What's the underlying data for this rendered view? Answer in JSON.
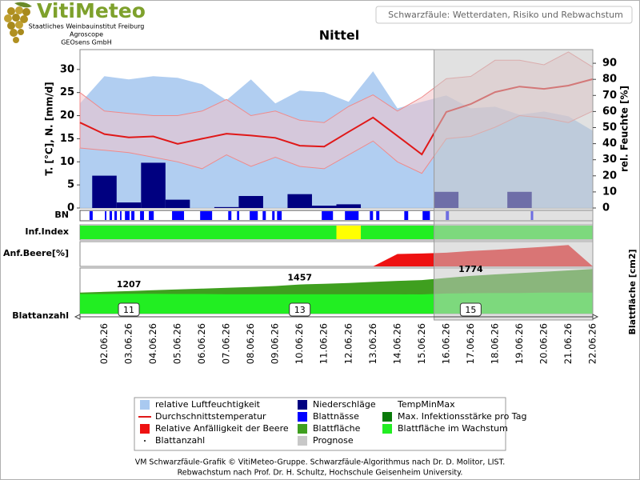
{
  "header": {
    "logo": "VitiMeteo",
    "org_lines": [
      "Staatliches Weinbauinstitut Freiburg",
      "Agroscope",
      "GEOsens GmbH"
    ],
    "banner": "Schwarzfäule: Wetterdaten, Risiko und Rebwachstum"
  },
  "chart_data": {
    "type": "combo",
    "title": "Nittel",
    "categories": [
      null,
      "02.06.26",
      "03.06.26",
      "04.06.26",
      "05.06.26",
      "06.06.26",
      "07.06.26",
      "08.06.26",
      "09.06.26",
      "10.06.26",
      "11.06.26",
      "12.06.26",
      "13.06.26",
      "14.06.26",
      "15.06.26",
      "16.06.26",
      "17.06.26",
      "18.06.26",
      "19.06.26",
      "20.06.26",
      "21.06.26",
      "22.06.26"
    ],
    "y_label": "T. [°C], N. [mm/d]",
    "ylim": [
      0,
      34.3
    ],
    "yticks": [
      0,
      5,
      10,
      15,
      20,
      25,
      30
    ],
    "y2_label": "rel. Feuchte [%]",
    "y2lim": [
      0,
      98.5
    ],
    "y2ticks": [
      0,
      10,
      20,
      30,
      40,
      50,
      60,
      70,
      80,
      90
    ],
    "y3_label": "Blattfläche [cm2]",
    "y3lim": [
      370,
      2070
    ],
    "row_labels": {
      "bn": "BN",
      "inf": "Inf.Index",
      "beere": "Anf.Beere[%]",
      "blattanzahl": "Blattanzahl"
    },
    "inf_index": [
      {
        "from": 0,
        "to": 10.5,
        "color": "#22ee22"
      },
      {
        "from": 10.5,
        "to": 11.5,
        "color": "#ffff00"
      },
      {
        "from": 11.5,
        "to": 21,
        "color": "#22ee22"
      }
    ],
    "series": [
      {
        "name": "relative Luftfeuchtigkeit",
        "type": "area",
        "axis": "y2",
        "symbol": "rect",
        "color": "#a9c9f0",
        "values": [
          65,
          82,
          80,
          82,
          81,
          77,
          67,
          80,
          65,
          73,
          72,
          66,
          85,
          62,
          66,
          70,
          62,
          63,
          58,
          60,
          57,
          48
        ]
      },
      {
        "name": "Niederschläge",
        "type": "bar",
        "symbol": "rect",
        "color": "#000080",
        "values": [
          0,
          7,
          1.2,
          9.8,
          1.8,
          0,
          0.2,
          2.6,
          0,
          3,
          0.5,
          0.8,
          0,
          0,
          0,
          3.5,
          0,
          0,
          3.5,
          0,
          0,
          0
        ]
      },
      {
        "name": "TempMinMax",
        "type": "band",
        "symbol": "none",
        "color": "#f3c3c8",
        "high": [
          25,
          21,
          20.5,
          20,
          20,
          21,
          23.5,
          20,
          21,
          19,
          18.5,
          22,
          24.5,
          21,
          24,
          28,
          28.5,
          32,
          32,
          31,
          33.8,
          30.5
        ],
        "low": [
          13,
          12.5,
          12,
          11,
          10,
          8.5,
          11.5,
          9,
          11,
          9,
          8.5,
          11.5,
          14.5,
          10,
          7.5,
          15,
          15.5,
          17.5,
          20,
          19.5,
          18.5,
          21
        ]
      },
      {
        "name": "Durchschnittstemperatur",
        "type": "line",
        "symbol": "line",
        "color": "#e01818",
        "values": [
          18.5,
          16,
          15.3,
          15.5,
          13.9,
          15,
          16.1,
          15.7,
          15.2,
          13.5,
          13.3,
          16.5,
          19.6,
          15.6,
          11.6,
          20.8,
          22.5,
          25.1,
          26.3,
          25.8,
          26.5,
          27.9
        ]
      },
      {
        "name": "Blattnässe",
        "type": "intervals",
        "symbol": "rect",
        "color": "#0000ff",
        "intervals": [
          [
            0.39,
            0.52
          ],
          [
            1.02,
            1.08
          ],
          [
            1.21,
            1.31
          ],
          [
            1.41,
            1.51
          ],
          [
            1.64,
            1.7
          ],
          [
            1.84,
            2.03
          ],
          [
            2.1,
            2.23
          ],
          [
            2.46,
            2.62
          ],
          [
            2.82,
            3.02
          ],
          [
            3.77,
            4.26
          ],
          [
            4.92,
            5.41
          ],
          [
            6.07,
            6.2
          ],
          [
            6.43,
            6.52
          ],
          [
            6.95,
            7.28
          ],
          [
            7.48,
            7.61
          ],
          [
            7.87,
            7.97
          ],
          [
            8.07,
            8.26
          ],
          [
            9.9,
            10.36
          ],
          [
            10.85,
            11.41
          ],
          [
            11.87,
            12.0
          ],
          [
            12.13,
            12.26
          ],
          [
            13.28,
            13.44
          ],
          [
            14.03,
            14.33
          ],
          [
            14.98,
            15.11
          ],
          [
            18.46,
            18.56
          ]
        ]
      },
      {
        "name": "Max. Infektionsstärke pro Tag",
        "type": "key",
        "symbol": "rect",
        "color": "#0a7a0a"
      },
      {
        "name": "Relative Anfälligkeit der Beere",
        "type": "strip",
        "symbol": "rect",
        "color": "#ee1111",
        "ylim": [
          0,
          100
        ],
        "values": [
          0,
          0,
          0,
          0,
          0,
          0,
          0,
          0,
          0,
          0,
          0,
          0,
          0,
          50,
          52,
          55,
          62,
          67,
          73,
          79,
          86,
          0
        ]
      },
      {
        "name": "Blattfläche",
        "type": "leaf",
        "symbol": "rect",
        "color": "#3f9f1f",
        "values": [
          1150,
          1180,
          1207,
          1240,
          1270,
          1300,
          1330,
          1360,
          1400,
          1457,
          1480,
          1510,
          1550,
          1590,
          1620,
          1700,
          1774,
          1830,
          1880,
          1930,
          1980,
          2030
        ],
        "value_labels": [
          null,
          null,
          "1207",
          null,
          null,
          null,
          null,
          null,
          null,
          "1457",
          null,
          null,
          null,
          null,
          null,
          null,
          "1774",
          null,
          null,
          null,
          null,
          null
        ]
      },
      {
        "name": "Blattfläche im Wachstum",
        "type": "leaf",
        "symbol": "rect",
        "color": "#22ee22",
        "values": [
          1100,
          1100,
          1110,
          1110,
          1100,
          1100,
          1090,
          1090,
          1090,
          1090,
          1090,
          1090,
          1090,
          1090,
          1087,
          1120,
          1130,
          1140,
          1140,
          1150,
          1150,
          1150
        ]
      },
      {
        "name": "Blattanzahl",
        "type": "count",
        "symbol": "dot",
        "color": "#000000",
        "values": [
          null,
          null,
          11,
          null,
          null,
          null,
          null,
          null,
          null,
          13,
          null,
          null,
          null,
          null,
          null,
          null,
          15,
          null,
          null,
          null,
          null,
          null
        ]
      },
      {
        "name": "Prognose",
        "type": "shade",
        "symbol": "rect",
        "color": "#c8c8c8",
        "from": "16.06.26"
      }
    ]
  },
  "footer": [
    "VM Schwarzfäule-Grafik © VitiMeteo-Gruppe. Schwarzfäule-Algorithmus nach Dr. D. Molitor, LIST.",
    "Rebwachstum nach Prof. Dr. H. Schultz, Hochschule Geisenheim University."
  ]
}
